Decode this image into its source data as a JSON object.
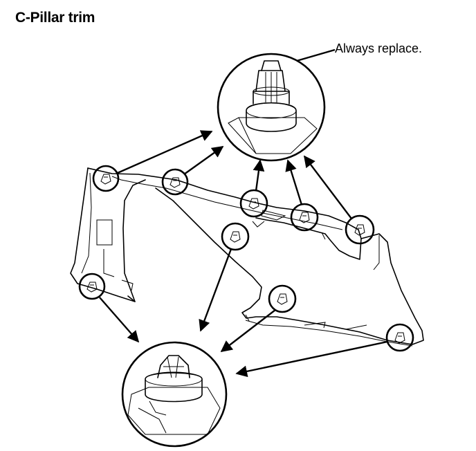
{
  "title": "C-Pillar trim",
  "callout": {
    "label": "Always replace."
  },
  "colors": {
    "ink": "#000000",
    "background": "#ffffff"
  }
}
